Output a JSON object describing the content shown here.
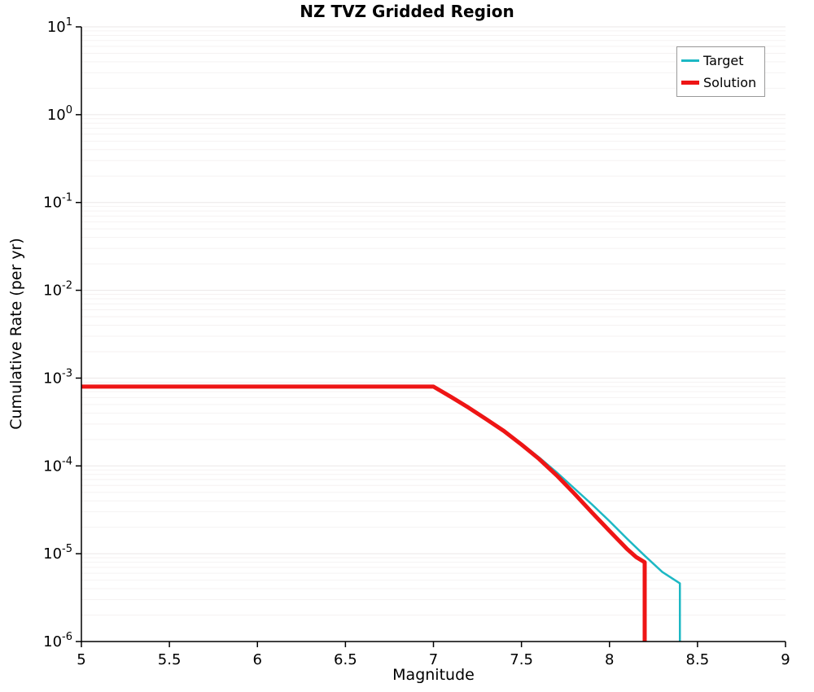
{
  "chart_data": {
    "type": "line",
    "title": "NZ TVZ Gridded Region",
    "xlabel": "Magnitude",
    "ylabel": "Cumulative Rate (per yr)",
    "xlim": [
      5,
      9
    ],
    "ylim": [
      1e-06,
      10
    ],
    "y_scale": "log",
    "x_ticks": [
      5,
      5.5,
      6,
      6.5,
      7,
      7.5,
      8,
      8.5,
      9
    ],
    "x_tick_labels": [
      "5",
      "5.5",
      "6",
      "6.5",
      "7",
      "7.5",
      "8",
      "8.5",
      "9"
    ],
    "y_tick_exponents": [
      1,
      0,
      -1,
      -2,
      -3,
      -4,
      -5,
      -6
    ],
    "grid": "horizontal-log-minor",
    "legend_position": "top-right",
    "axis_color": "#000000",
    "grid_minor_color": "#f5f2f2",
    "grid_major_color": "#ebe7e7",
    "series": [
      {
        "name": "Target",
        "color": "#1db8c4",
        "width": 2.5,
        "points": [
          [
            5.0,
            0.0008
          ],
          [
            7.0,
            0.0008
          ],
          [
            7.1,
            0.00062
          ],
          [
            7.2,
            0.00047
          ],
          [
            7.3,
            0.00035
          ],
          [
            7.4,
            0.000255
          ],
          [
            7.5,
            0.00018
          ],
          [
            7.6,
            0.000125
          ],
          [
            7.7,
            8.45e-05
          ],
          [
            7.8,
            5.55e-05
          ],
          [
            7.9,
            3.65e-05
          ],
          [
            8.0,
            2.35e-05
          ],
          [
            8.1,
            1.48e-05
          ],
          [
            8.2,
            9.5e-06
          ],
          [
            8.3,
            6.2e-06
          ],
          [
            8.4,
            4.6e-06
          ],
          [
            8.4,
            1e-06
          ]
        ]
      },
      {
        "name": "Solution",
        "color": "#ee1515",
        "width": 5,
        "points": [
          [
            5.0,
            0.0008
          ],
          [
            7.0,
            0.0008
          ],
          [
            7.1,
            0.00061
          ],
          [
            7.2,
            0.00046
          ],
          [
            7.3,
            0.00034
          ],
          [
            7.4,
            0.00025
          ],
          [
            7.5,
            0.000175
          ],
          [
            7.6,
            0.00012
          ],
          [
            7.7,
            7.8e-05
          ],
          [
            7.8,
            4.85e-05
          ],
          [
            7.9,
            2.95e-05
          ],
          [
            8.0,
            1.82e-05
          ],
          [
            8.1,
            1.13e-05
          ],
          [
            8.15,
            9.2e-06
          ],
          [
            8.2,
            8e-06
          ],
          [
            8.2,
            1e-06
          ]
        ]
      }
    ]
  }
}
